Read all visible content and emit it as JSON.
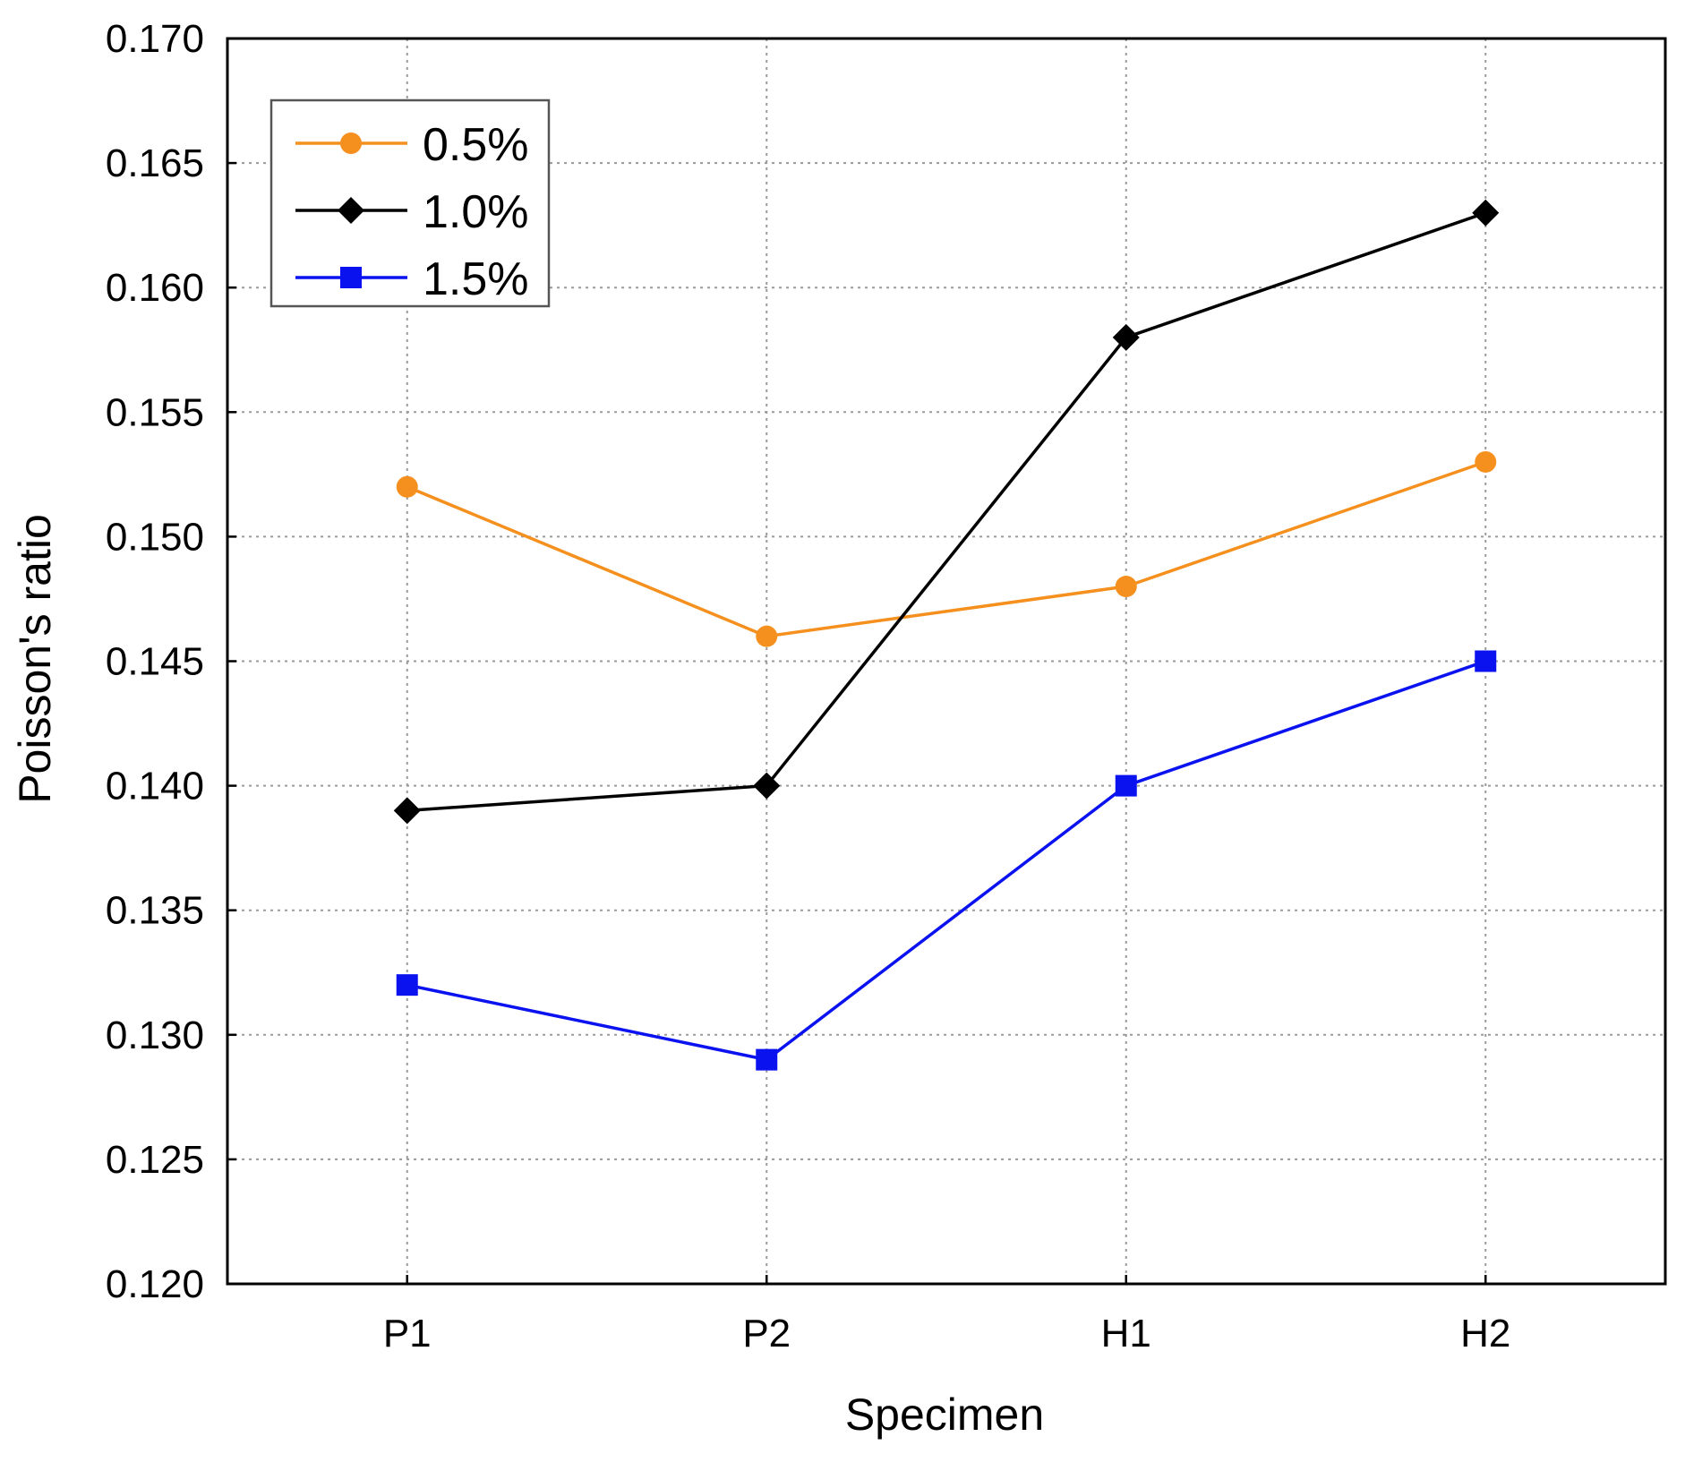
{
  "chart_data": {
    "type": "line",
    "title": "",
    "xlabel": "Specimen",
    "ylabel": "Poisson's ratio",
    "categories": [
      "P1",
      "P2",
      "H1",
      "H2"
    ],
    "ylim": [
      0.12,
      0.17
    ],
    "yticks": [
      "0.120",
      "0.125",
      "0.130",
      "0.135",
      "0.140",
      "0.145",
      "0.150",
      "0.155",
      "0.160",
      "0.165",
      "0.170"
    ],
    "grid": true,
    "legend_position": "top-left",
    "series": [
      {
        "name": "0.5%",
        "values": [
          0.152,
          0.146,
          0.148,
          0.153
        ],
        "color": "#f5901e",
        "marker": "circle"
      },
      {
        "name": "1.0%",
        "values": [
          0.139,
          0.14,
          0.158,
          0.163
        ],
        "color": "#000000",
        "marker": "diamond"
      },
      {
        "name": "1.5%",
        "values": [
          0.132,
          0.129,
          0.14,
          0.145
        ],
        "color": "#0a12f0",
        "marker": "square"
      }
    ]
  }
}
